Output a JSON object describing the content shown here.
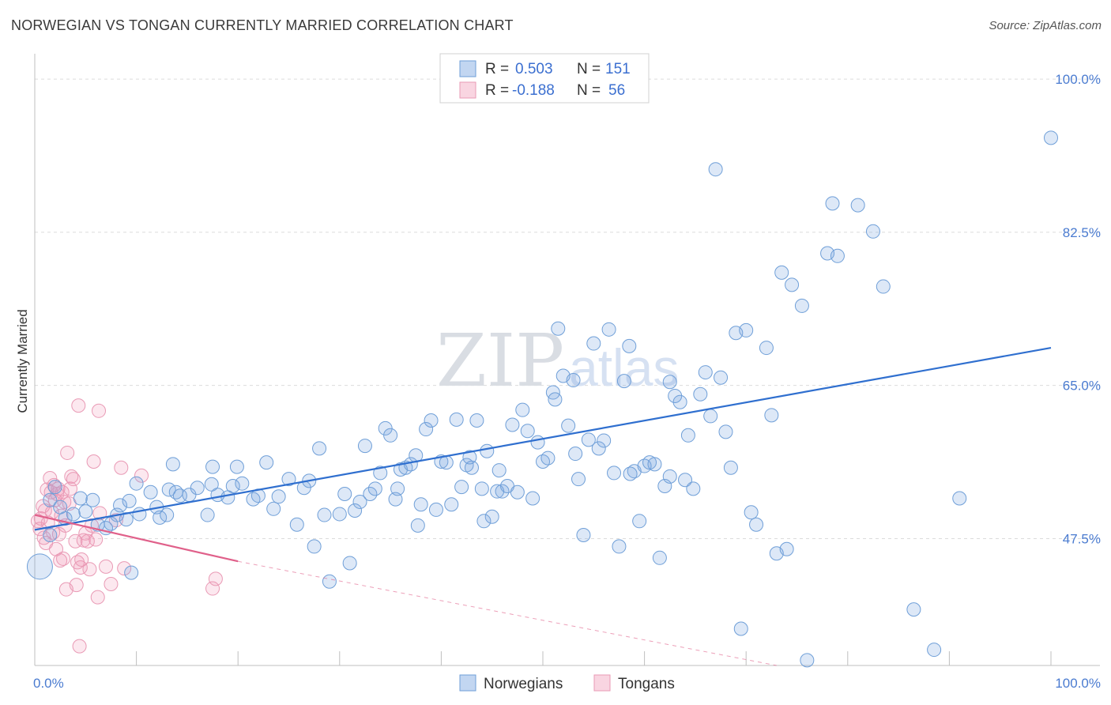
{
  "title": "NORWEGIAN VS TONGAN CURRENTLY MARRIED CORRELATION CHART",
  "source": "Source: ZipAtlas.com",
  "watermark": {
    "zip": "ZIP",
    "atlas": "atlas"
  },
  "colors": {
    "norwegian_fill": "rgba(120,165,225,0.25)",
    "norwegian_stroke": "#6f9fd8",
    "norwegian_line": "#2f6fcf",
    "tongan_fill": "rgba(240,150,180,0.22)",
    "tongan_stroke": "#e99ab5",
    "tongan_line": "#e0608a",
    "axis_text": "#4a7bd0",
    "grid": "#dcdcdc"
  },
  "legend": {
    "rows": [
      {
        "r_label": "R =",
        "r_value": "0.503",
        "n_label": "N =",
        "n_value": "151",
        "series": "norwegians"
      },
      {
        "r_label": "R =",
        "r_value": "-0.188",
        "n_label": "N =",
        "n_value": "56",
        "series": "tongans"
      }
    ]
  },
  "chart_data": {
    "type": "scatter",
    "title": "NORWEGIAN VS TONGAN CURRENTLY MARRIED CORRELATION CHART",
    "xlabel": "",
    "ylabel": "Currently Married",
    "xlim": [
      0,
      100
    ],
    "ylim": [
      33,
      102
    ],
    "x_tick_labels": [
      "0.0%",
      "100.0%"
    ],
    "y_ticks": [
      47.5,
      65.0,
      82.5,
      100.0
    ],
    "y_tick_labels": [
      "47.5%",
      "65.0%",
      "82.5%",
      "100.0%"
    ],
    "grid": true,
    "legend_position": "bottom",
    "series": [
      {
        "name": "Norwegians",
        "r": 0.503,
        "n": 151,
        "trend": {
          "x": [
            0,
            100
          ],
          "y": [
            48.5,
            69.3
          ],
          "dashed_from": null
        },
        "points": [
          [
            0.5,
            44.3
          ],
          [
            1.5,
            47.9
          ],
          [
            1.5,
            51.9
          ],
          [
            2.0,
            53.4
          ],
          [
            2.5,
            51.1
          ],
          [
            3.0,
            49.8
          ],
          [
            3.8,
            50.3
          ],
          [
            4.5,
            52.1
          ],
          [
            5.0,
            50.6
          ],
          [
            5.7,
            51.9
          ],
          [
            6.2,
            49.1
          ],
          [
            7.0,
            48.7
          ],
          [
            7.5,
            49.2
          ],
          [
            8.1,
            50.2
          ],
          [
            8.4,
            51.3
          ],
          [
            9.0,
            49.7
          ],
          [
            9.3,
            51.8
          ],
          [
            9.5,
            43.6
          ],
          [
            10.0,
            53.8
          ],
          [
            10.3,
            50.3
          ],
          [
            11.4,
            52.8
          ],
          [
            12.0,
            51.1
          ],
          [
            12.3,
            49.9
          ],
          [
            13.0,
            50.2
          ],
          [
            13.2,
            53.1
          ],
          [
            13.6,
            56.0
          ],
          [
            13.9,
            52.8
          ],
          [
            14.3,
            52.4
          ],
          [
            15.2,
            52.5
          ],
          [
            16.0,
            53.3
          ],
          [
            17.0,
            50.2
          ],
          [
            17.4,
            53.7
          ],
          [
            17.5,
            55.7
          ],
          [
            18.0,
            52.5
          ],
          [
            19.0,
            52.2
          ],
          [
            19.5,
            53.5
          ],
          [
            19.9,
            55.7
          ],
          [
            20.4,
            53.8
          ],
          [
            21.5,
            52.0
          ],
          [
            22.0,
            52.4
          ],
          [
            22.8,
            56.2
          ],
          [
            23.5,
            50.9
          ],
          [
            24.0,
            52.3
          ],
          [
            25.0,
            54.3
          ],
          [
            25.8,
            49.1
          ],
          [
            26.5,
            53.3
          ],
          [
            27.0,
            54.1
          ],
          [
            27.5,
            46.6
          ],
          [
            28.0,
            57.8
          ],
          [
            28.5,
            50.2
          ],
          [
            29.0,
            42.6
          ],
          [
            30.0,
            50.3
          ],
          [
            30.5,
            52.6
          ],
          [
            31.0,
            44.7
          ],
          [
            31.5,
            50.7
          ],
          [
            32.0,
            51.7
          ],
          [
            32.5,
            58.1
          ],
          [
            33.0,
            52.6
          ],
          [
            33.5,
            53.2
          ],
          [
            34.0,
            55.0
          ],
          [
            34.5,
            60.1
          ],
          [
            35.0,
            59.3
          ],
          [
            35.5,
            52.0
          ],
          [
            36.0,
            55.4
          ],
          [
            36.5,
            55.6
          ],
          [
            37.0,
            56.0
          ],
          [
            37.5,
            57.0
          ],
          [
            38.0,
            51.4
          ],
          [
            38.5,
            60.0
          ],
          [
            39.0,
            61.0
          ],
          [
            39.5,
            50.8
          ],
          [
            40.0,
            56.3
          ],
          [
            40.5,
            56.2
          ],
          [
            41.0,
            51.4
          ],
          [
            41.5,
            61.1
          ],
          [
            42.0,
            53.4
          ],
          [
            42.5,
            55.9
          ],
          [
            43.0,
            55.6
          ],
          [
            43.5,
            61.0
          ],
          [
            44.0,
            53.2
          ],
          [
            44.5,
            57.5
          ],
          [
            45.0,
            50.0
          ],
          [
            45.5,
            52.9
          ],
          [
            46.0,
            52.9
          ],
          [
            46.5,
            53.5
          ],
          [
            47.0,
            60.5
          ],
          [
            47.5,
            52.8
          ],
          [
            48.0,
            62.2
          ],
          [
            48.5,
            59.8
          ],
          [
            49.0,
            52.1
          ],
          [
            49.5,
            58.5
          ],
          [
            50.0,
            56.3
          ],
          [
            50.5,
            56.7
          ],
          [
            51.0,
            64.2
          ],
          [
            51.5,
            71.5
          ],
          [
            52.0,
            66.1
          ],
          [
            52.5,
            60.4
          ],
          [
            53.0,
            65.6
          ],
          [
            53.5,
            54.3
          ],
          [
            54.0,
            47.9
          ],
          [
            54.5,
            58.8
          ],
          [
            55.0,
            69.8
          ],
          [
            55.5,
            57.8
          ],
          [
            56.0,
            58.7
          ],
          [
            56.5,
            71.4
          ],
          [
            57.0,
            55.0
          ],
          [
            57.5,
            46.6
          ],
          [
            58.0,
            65.5
          ],
          [
            58.5,
            69.5
          ],
          [
            59.0,
            55.2
          ],
          [
            59.5,
            49.5
          ],
          [
            60.0,
            55.8
          ],
          [
            60.5,
            56.2
          ],
          [
            61.0,
            56.0
          ],
          [
            61.5,
            45.3
          ],
          [
            62.0,
            53.5
          ],
          [
            62.5,
            54.6
          ],
          [
            63.0,
            63.8
          ],
          [
            63.5,
            63.1
          ],
          [
            64.0,
            54.2
          ],
          [
            64.3,
            59.3
          ],
          [
            64.8,
            53.2
          ],
          [
            65.5,
            64.0
          ],
          [
            66.0,
            66.5
          ],
          [
            66.5,
            61.5
          ],
          [
            67.0,
            89.7
          ],
          [
            67.5,
            65.9
          ],
          [
            68.0,
            59.7
          ],
          [
            68.5,
            55.6
          ],
          [
            69.0,
            71.0
          ],
          [
            69.5,
            37.2
          ],
          [
            70.0,
            71.3
          ],
          [
            70.5,
            50.5
          ],
          [
            71.0,
            49.1
          ],
          [
            72.0,
            69.3
          ],
          [
            72.5,
            61.6
          ],
          [
            73.0,
            45.8
          ],
          [
            73.5,
            77.9
          ],
          [
            74.0,
            46.3
          ],
          [
            74.5,
            76.5
          ],
          [
            75.5,
            74.1
          ],
          [
            76.0,
            33.6
          ],
          [
            78.0,
            80.1
          ],
          [
            78.5,
            85.8
          ],
          [
            79.0,
            79.8
          ],
          [
            81.0,
            85.6
          ],
          [
            82.5,
            82.6
          ],
          [
            83.5,
            76.3
          ],
          [
            86.5,
            39.4
          ],
          [
            88.5,
            34.8
          ],
          [
            91.0,
            52.1
          ],
          [
            100.0,
            93.3
          ],
          [
            62.5,
            65.4
          ],
          [
            58.6,
            54.9
          ],
          [
            35.7,
            53.2
          ],
          [
            51.2,
            63.4
          ],
          [
            44.2,
            49.5
          ],
          [
            37.7,
            49.0
          ],
          [
            42.8,
            56.8
          ],
          [
            53.2,
            57.2
          ],
          [
            45.7,
            55.3
          ]
        ]
      },
      {
        "name": "Tongans",
        "r": -0.188,
        "n": 56,
        "trend": {
          "x": [
            0,
            20
          ],
          "y": [
            50.2,
            44.9
          ],
          "dashed_to": [
            73,
            33
          ]
        },
        "points": [
          [
            0.3,
            49.5
          ],
          [
            0.5,
            48.6
          ],
          [
            0.6,
            49.8
          ],
          [
            0.8,
            51.2
          ],
          [
            0.9,
            47.6
          ],
          [
            1.0,
            50.7
          ],
          [
            1.2,
            53.1
          ],
          [
            1.3,
            49.3
          ],
          [
            1.5,
            54.4
          ],
          [
            1.6,
            52.8
          ],
          [
            1.7,
            50.5
          ],
          [
            1.8,
            48.2
          ],
          [
            1.9,
            53.6
          ],
          [
            2.0,
            51.9
          ],
          [
            2.1,
            46.3
          ],
          [
            2.2,
            52.6
          ],
          [
            2.3,
            53.2
          ],
          [
            2.4,
            48.0
          ],
          [
            2.5,
            45.0
          ],
          [
            2.6,
            50.1
          ],
          [
            2.7,
            52.8
          ],
          [
            2.8,
            45.2
          ],
          [
            2.9,
            51.7
          ],
          [
            3.0,
            49.0
          ],
          [
            3.1,
            41.7
          ],
          [
            3.2,
            57.3
          ],
          [
            3.4,
            51.5
          ],
          [
            3.5,
            53.2
          ],
          [
            3.6,
            54.6
          ],
          [
            3.8,
            54.3
          ],
          [
            4.0,
            47.2
          ],
          [
            4.1,
            42.2
          ],
          [
            4.2,
            44.8
          ],
          [
            4.3,
            62.7
          ],
          [
            4.4,
            35.2
          ],
          [
            4.5,
            44.2
          ],
          [
            4.6,
            45.1
          ],
          [
            4.8,
            47.3
          ],
          [
            5.0,
            48.1
          ],
          [
            5.2,
            47.2
          ],
          [
            5.4,
            44.0
          ],
          [
            5.6,
            49.0
          ],
          [
            5.8,
            56.3
          ],
          [
            6.0,
            47.4
          ],
          [
            6.2,
            40.8
          ],
          [
            6.3,
            62.1
          ],
          [
            6.4,
            50.4
          ],
          [
            7.0,
            44.3
          ],
          [
            7.5,
            42.3
          ],
          [
            8.0,
            49.6
          ],
          [
            8.5,
            55.6
          ],
          [
            8.8,
            44.1
          ],
          [
            10.5,
            54.7
          ],
          [
            17.5,
            41.8
          ],
          [
            17.8,
            42.9
          ],
          [
            1.1,
            47.0
          ]
        ]
      }
    ]
  },
  "bottom_legend": [
    {
      "label": "Norwegians",
      "series": "norwegians"
    },
    {
      "label": "Tongans",
      "series": "tongans"
    }
  ]
}
